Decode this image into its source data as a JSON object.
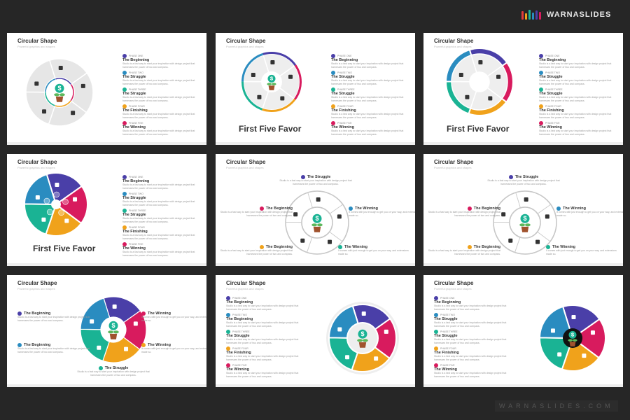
{
  "brand": {
    "name": "WARNASLIDES",
    "footer": "WARNASLIDES.COM",
    "bar_colors": [
      "#e03a3a",
      "#f0a21b",
      "#1ab394",
      "#2a8cc0",
      "#4a3fa8",
      "#d81b5e"
    ]
  },
  "colors": {
    "purple": "#4a3fa8",
    "blue": "#2a8cc0",
    "teal": "#1ab394",
    "orange": "#f0a21b",
    "pink": "#d81b5e",
    "grey": "#e4e4e4"
  },
  "slides": [
    {
      "title": "Circular Shape",
      "subtitle": "Powerful graphics and shapes",
      "diagram": "grey-pie",
      "list": "right",
      "items": [
        {
          "phase": "PHASE ONE",
          "heading": "The Beginning",
          "body": "Studio is a fast way to start your inspiration with design project that harnesses the power of two and compass."
        },
        {
          "phase": "PHASE TWO",
          "heading": "The Struggle",
          "body": "Studio is a fast way to start your inspiration with design project that harnesses the power of two and compass."
        },
        {
          "phase": "PHASE THREE",
          "heading": "The Struggle",
          "body": "Studio is a fast way to start your inspiration with design project that harnesses the power of two and compass."
        },
        {
          "phase": "PHASE FOUR",
          "heading": "The Finishing",
          "body": "Studio is a fast way to start your inspiration with design project that harnesses the power of two and compass."
        },
        {
          "phase": "PHASE FIVE",
          "heading": "The Winning",
          "body": "Studio is a fast way to start your inspiration with design project that harnesses the power of two and compass."
        }
      ]
    },
    {
      "title": "Circular Shape",
      "subtitle": "Powerful graphics and shapes",
      "diagram": "thin-ring",
      "caption": "First Five Favor",
      "list": "right",
      "items": [
        {
          "phase": "PHASE ONE",
          "heading": "The Beginning",
          "body": "Studio is a fast way to start your inspiration with design project that harnesses the power of two and compass."
        },
        {
          "phase": "PHASE TWO",
          "heading": "The Struggle",
          "body": "Studio is a fast way to start your inspiration with design project that harnesses the power of two and compass."
        },
        {
          "phase": "PHASE THREE",
          "heading": "The Struggle",
          "body": "Studio is a fast way to start your inspiration with design project that harnesses the power of two and compass."
        },
        {
          "phase": "PHASE FOUR",
          "heading": "The Finishing",
          "body": "Studio is a fast way to start your inspiration with design project that harnesses the power of two and compass."
        },
        {
          "phase": "PHASE FIVE",
          "heading": "The Winning",
          "body": "Studio is a fast way to start your inspiration with design project that harnesses the power of two and compass."
        }
      ]
    },
    {
      "title": "Circular Shape",
      "subtitle": "Powerful graphics and shapes",
      "diagram": "petals",
      "caption": "First Five Favor",
      "list": "right",
      "items": [
        {
          "phase": "PHASE ONE",
          "heading": "The Beginning",
          "body": "Studio is a fast way to start your inspiration with design project that harnesses the power of two and compass."
        },
        {
          "phase": "PHASE TWO",
          "heading": "The Struggle",
          "body": "Studio is a fast way to start your inspiration with design project that harnesses the power of two and compass."
        },
        {
          "phase": "PHASE THREE",
          "heading": "The Struggle",
          "body": "Studio is a fast way to start your inspiration with design project that harnesses the power of two and compass."
        },
        {
          "phase": "PHASE FOUR",
          "heading": "The Finishing",
          "body": "Studio is a fast way to start your inspiration with design project that harnesses the power of two and compass."
        },
        {
          "phase": "PHASE FIVE",
          "heading": "The Winning",
          "body": "Studio is a fast way to start your inspiration with design project that harnesses the power of two and compass."
        }
      ]
    },
    {
      "title": "Circular Shape",
      "subtitle": "Powerful graphics and shapes",
      "diagram": "color-pie",
      "caption": "First Five Favor",
      "list": "right",
      "items": [
        {
          "phase": "PHASE ONE",
          "heading": "The Beginning",
          "body": "Studio is a fast way to start your inspiration with design project that harnesses the power of two and compass."
        },
        {
          "phase": "PHASE TWO",
          "heading": "The Struggle",
          "body": "Studio is a fast way to start your inspiration with design project that harnesses the power of two and compass."
        },
        {
          "phase": "PHASE THREE",
          "heading": "The Struggle",
          "body": "Studio is a fast way to start your inspiration with design project that harnesses the power of two and compass."
        },
        {
          "phase": "PHASE FOUR",
          "heading": "The Finishing",
          "body": "Studio is a fast way to start your inspiration with design project that harnesses the power of two and compass."
        },
        {
          "phase": "PHASE FIVE",
          "heading": "The Winning",
          "body": "Studio is a fast way to start your inspiration with design project that harnesses the power of two and compass."
        }
      ]
    },
    {
      "title": "Circular Shape",
      "subtitle": "Powerful graphics and shapes",
      "diagram": "outline",
      "list": "around",
      "items": [
        {
          "heading": "The Struggle",
          "body": "Studio is a fast way to start your inspiration with design project that harnesses the power of two and compass."
        },
        {
          "heading": "The Beginning",
          "body": "Studio is a fast way to start your inspiration with design project that harnesses the power of two and compass."
        },
        {
          "heading": "The Winning",
          "body": "It comes with just enough to get you on your way, and extensions made so."
        },
        {
          "heading": "The Beginning",
          "body": "Studio is a fast way to start your inspiration with design project that harnesses the power of two and compass."
        },
        {
          "heading": "The Winning",
          "body": "It comes with just enough to get you on your way, and extensions made so."
        }
      ]
    },
    {
      "title": "Circular Shape",
      "subtitle": "Powerful graphics and shapes",
      "diagram": "outline",
      "list": "around",
      "items": [
        {
          "heading": "The Struggle",
          "body": "Studio is a fast way to start your inspiration with design project that harnesses the power of two and compass."
        },
        {
          "heading": "The Beginning",
          "body": "Studio is a fast way to start your inspiration with design project that harnesses the power of two and compass."
        },
        {
          "heading": "The Winning",
          "body": "It comes with just enough to get you on your way, and extensions made so."
        },
        {
          "heading": "The Beginning",
          "body": "Studio is a fast way to start your inspiration with design project that harnesses the power of two and compass."
        },
        {
          "heading": "The Winning",
          "body": "It comes with just enough to get you on your way, and extensions made so."
        }
      ]
    },
    {
      "title": "Circular Shape",
      "subtitle": "Powerful graphics and shapes",
      "diagram": "color-donut",
      "list": "sides",
      "items": [
        {
          "heading": "The Beginning",
          "body": "Studio is a fast way to start your inspiration with design project that harnesses the power of two and compass."
        },
        {
          "heading": "The Beginning",
          "body": "Studio is a fast way to start your inspiration with design project that harnesses the power of two and compass."
        },
        {
          "heading": "The Winning",
          "body": "It comes with just enough to get you on your way, and extensions made so."
        },
        {
          "heading": "The Winning",
          "body": "It comes with just enough to get you on your way, and extensions made so."
        },
        {
          "heading": "The Struggle",
          "body": "Studio is a fast way to start your inspiration with design project that harnesses the power of two and compass."
        }
      ]
    },
    {
      "title": "Circular Shape",
      "subtitle": "Powerful graphics and shapes",
      "diagram": "donut-right",
      "list": "left",
      "items": [
        {
          "phase": "PHASE ONE",
          "heading": "The Beginning",
          "body": "Studio is a fast way to start your inspiration with design project that harnesses the power of two and compass."
        },
        {
          "phase": "PHASE TWO",
          "heading": "The Beginning",
          "body": "Studio is a fast way to start your inspiration with design project that harnesses the power of two and compass."
        },
        {
          "phase": "PHASE THREE",
          "heading": "The Struggle",
          "body": "Studio is a fast way to start your inspiration with design project that harnesses the power of two and compass."
        },
        {
          "phase": "PHASE FOUR",
          "heading": "The Finishing",
          "body": "Studio is a fast way to start your inspiration with design project that harnesses the power of two and compass."
        },
        {
          "phase": "PHASE FIVE",
          "heading": "The Winning",
          "body": "Studio is a fast way to start your inspiration with design project that harnesses the power of two and compass."
        }
      ]
    },
    {
      "title": "Circular Shape",
      "subtitle": "Powerful graphics and shapes",
      "diagram": "flower-right",
      "list": "left",
      "items": [
        {
          "phase": "PHASE ONE",
          "heading": "The Beginning",
          "body": "Studio is a fast way to start your inspiration with design project that harnesses the power of two and compass."
        },
        {
          "phase": "PHASE TWO",
          "heading": "The Struggle",
          "body": "Studio is a fast way to start your inspiration with design project that harnesses the power of two and compass."
        },
        {
          "phase": "PHASE THREE",
          "heading": "The Struggle",
          "body": "Studio is a fast way to start your inspiration with design project that harnesses the power of two and compass."
        },
        {
          "phase": "PHASE FOUR",
          "heading": "The Finishing",
          "body": "Studio is a fast way to start your inspiration with design project that harnesses the power of two and compass."
        },
        {
          "phase": "PHASE FIVE",
          "heading": "The Winning",
          "body": "Studio is a fast way to start your inspiration with design project that harnesses the power of two and compass."
        }
      ]
    }
  ]
}
